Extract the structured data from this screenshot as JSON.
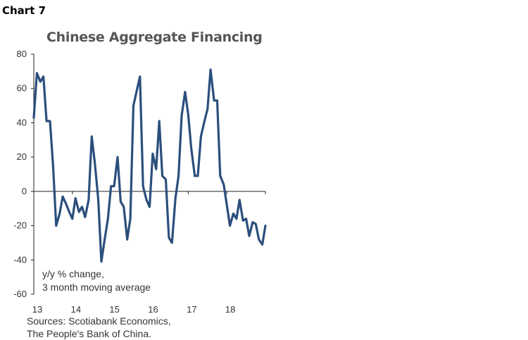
{
  "header": {
    "chart_number": "Chart 7"
  },
  "colors": {
    "series": "#2b4f7c",
    "axis": "#222222"
  },
  "source": {
    "line1": "Sources: Scotiabank Economics,",
    "line2": "The People's Bank of China."
  },
  "chart_data": {
    "type": "line",
    "title": "Chinese Aggregate Financing",
    "xlabel": "",
    "ylabel": "",
    "ylim": [
      -60,
      80
    ],
    "yticks": [
      80,
      60,
      40,
      20,
      0,
      -20,
      -40,
      -60
    ],
    "xticks": [
      "13",
      "14",
      "15",
      "16",
      "17",
      "18"
    ],
    "xrange": [
      2013.0,
      2019.0
    ],
    "grid": false,
    "annotation": [
      "y/y % change,",
      "3 month moving average"
    ],
    "series": [
      {
        "values": [
          [
            2013.0,
            43
          ],
          [
            2013.08,
            69
          ],
          [
            2013.17,
            64
          ],
          [
            2013.25,
            67
          ],
          [
            2013.33,
            41
          ],
          [
            2013.42,
            41
          ],
          [
            2013.5,
            15
          ],
          [
            2013.58,
            -20
          ],
          [
            2013.67,
            -13
          ],
          [
            2013.75,
            -3
          ],
          [
            2013.83,
            -7
          ],
          [
            2013.92,
            -12
          ],
          [
            2014.0,
            -16
          ],
          [
            2014.08,
            -4
          ],
          [
            2014.17,
            -12
          ],
          [
            2014.25,
            -9
          ],
          [
            2014.33,
            -15
          ],
          [
            2014.42,
            -5
          ],
          [
            2014.5,
            32
          ],
          [
            2014.58,
            17
          ],
          [
            2014.67,
            -5
          ],
          [
            2014.75,
            -41
          ],
          [
            2014.83,
            -29
          ],
          [
            2014.92,
            -16
          ],
          [
            2015.0,
            3
          ],
          [
            2015.08,
            3
          ],
          [
            2015.17,
            20
          ],
          [
            2015.25,
            -6
          ],
          [
            2015.33,
            -9
          ],
          [
            2015.42,
            -28
          ],
          [
            2015.5,
            -16
          ],
          [
            2015.58,
            50
          ],
          [
            2015.67,
            59
          ],
          [
            2015.75,
            67
          ],
          [
            2015.83,
            3
          ],
          [
            2015.92,
            -5
          ],
          [
            2016.0,
            -9
          ],
          [
            2016.08,
            22
          ],
          [
            2016.17,
            13
          ],
          [
            2016.25,
            41
          ],
          [
            2016.33,
            9
          ],
          [
            2016.42,
            7
          ],
          [
            2016.5,
            -27
          ],
          [
            2016.58,
            -30
          ],
          [
            2016.67,
            -4
          ],
          [
            2016.75,
            9
          ],
          [
            2016.83,
            44
          ],
          [
            2016.92,
            58
          ],
          [
            2017.0,
            45
          ],
          [
            2017.08,
            25
          ],
          [
            2017.17,
            9
          ],
          [
            2017.25,
            9
          ],
          [
            2017.33,
            32
          ],
          [
            2017.42,
            41
          ],
          [
            2017.5,
            48
          ],
          [
            2017.58,
            71
          ],
          [
            2017.67,
            53
          ],
          [
            2017.75,
            53
          ],
          [
            2017.83,
            9
          ],
          [
            2017.92,
            4
          ],
          [
            2018.0,
            -8
          ],
          [
            2018.08,
            -20
          ],
          [
            2018.17,
            -13
          ],
          [
            2018.25,
            -16
          ],
          [
            2018.33,
            -5
          ],
          [
            2018.42,
            -17
          ],
          [
            2018.5,
            -16
          ],
          [
            2018.58,
            -26
          ],
          [
            2018.67,
            -18
          ],
          [
            2018.75,
            -19
          ],
          [
            2018.83,
            -28
          ],
          [
            2018.92,
            -31
          ],
          [
            2019.0,
            -20
          ]
        ]
      }
    ]
  }
}
